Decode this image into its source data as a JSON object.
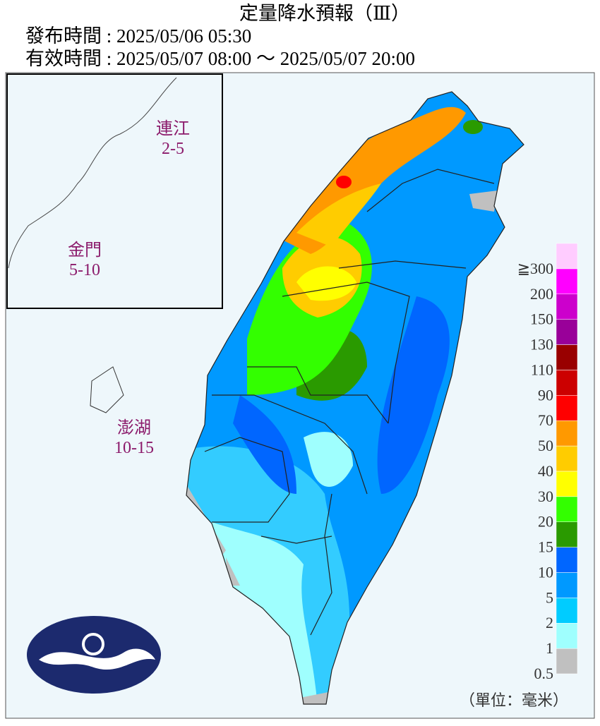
{
  "header": {
    "title": "定量降水預報（Ⅲ）",
    "issued": "發布時間 : 2025/05/06 05:30",
    "valid": "有效時間 : 2025/05/07 08:00 ～ 2025/05/07 20:00"
  },
  "islands": [
    {
      "name": "連江",
      "range": "2-5"
    },
    {
      "name": "金門",
      "range": "5-10"
    },
    {
      "name": "澎湖",
      "range": "10-15"
    }
  ],
  "legend": {
    "unit": "（單位：毫米）",
    "items": [
      {
        "label": "0.5",
        "color": "#c0c0c0"
      },
      {
        "label": "1",
        "color": "#9ffffe"
      },
      {
        "label": "2",
        "color": "#00ccff"
      },
      {
        "label": "5",
        "color": "#0099ff"
      },
      {
        "label": "10",
        "color": "#0066ff"
      },
      {
        "label": "15",
        "color": "#2a9a00"
      },
      {
        "label": "20",
        "color": "#33ff00"
      },
      {
        "label": "30",
        "color": "#ffff00"
      },
      {
        "label": "40",
        "color": "#ffcc00"
      },
      {
        "label": "50",
        "color": "#ff9900"
      },
      {
        "label": "70",
        "color": "#ff0000"
      },
      {
        "label": "90",
        "color": "#cc0000"
      },
      {
        "label": "110",
        "color": "#990000"
      },
      {
        "label": "130",
        "color": "#990099"
      },
      {
        "label": "150",
        "color": "#cc00cc"
      },
      {
        "label": "200",
        "color": "#ff00ff"
      },
      {
        "label": "≧300",
        "color": "#ffccff"
      }
    ]
  }
}
